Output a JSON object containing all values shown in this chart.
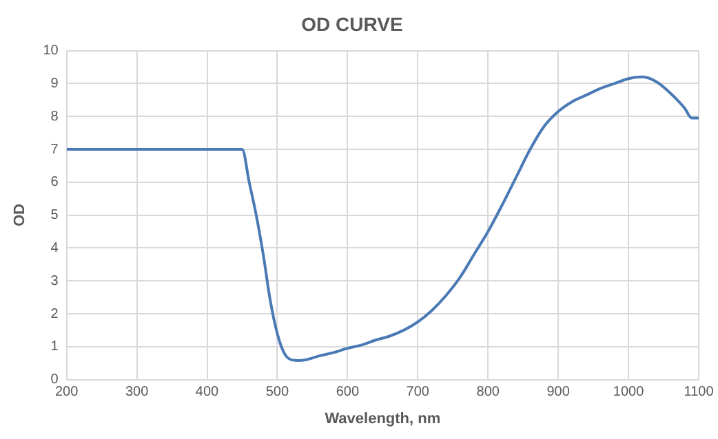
{
  "chart_data": {
    "type": "line",
    "title": "OD CURVE",
    "xlabel": "Wavelength, nm",
    "ylabel": "OD",
    "x": [
      200,
      450,
      460,
      470,
      480,
      490,
      500,
      510,
      520,
      530,
      540,
      560,
      580,
      600,
      620,
      640,
      660,
      680,
      700,
      720,
      740,
      760,
      780,
      800,
      820,
      840,
      860,
      880,
      900,
      920,
      940,
      960,
      980,
      1000,
      1020,
      1040,
      1060,
      1080,
      1090,
      1100
    ],
    "series": [
      {
        "color": "#4a7ab5",
        "values": [
          7,
          7,
          6.0,
          5.0,
          3.8,
          2.4,
          1.4,
          0.8,
          0.6,
          0.58,
          0.6,
          0.72,
          0.82,
          0.95,
          1.05,
          1.2,
          1.32,
          1.5,
          1.75,
          2.1,
          2.55,
          3.1,
          3.8,
          4.5,
          5.3,
          6.15,
          7.0,
          7.7,
          8.15,
          8.45,
          8.65,
          8.85,
          9.0,
          9.15,
          9.2,
          9.05,
          8.7,
          8.25,
          7.95,
          7.95
        ]
      }
    ],
    "xlim": [
      200,
      1100
    ],
    "xticks": [
      200,
      300,
      400,
      500,
      600,
      700,
      800,
      900,
      1000,
      1100
    ],
    "ylim": [
      0,
      10
    ],
    "yticks": [
      0,
      1,
      2,
      3,
      4,
      5,
      6,
      7,
      8,
      9,
      10
    ],
    "grid": true,
    "legend": false,
    "marker": "none",
    "line_style": "solid"
  }
}
